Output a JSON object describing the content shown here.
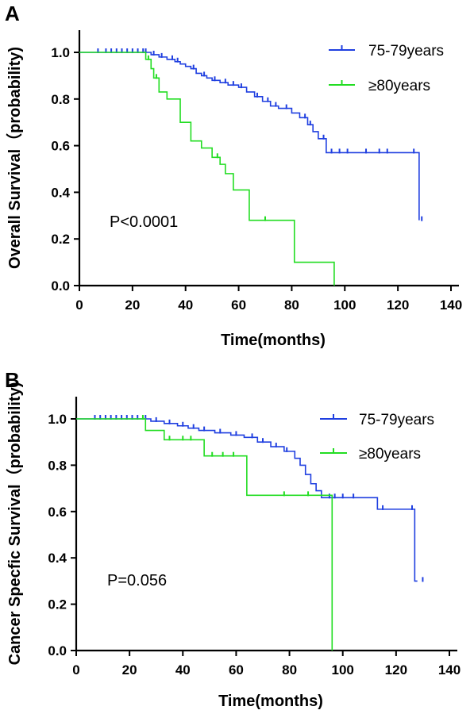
{
  "chart_data": [
    {
      "panel": "A",
      "type": "line",
      "step": true,
      "ylabel": "Overall Survival（probability)",
      "xlabel": "Time(months)",
      "xlim": [
        0,
        140
      ],
      "ylim": [
        0,
        1.0
      ],
      "xticks": [
        0,
        20,
        40,
        60,
        80,
        100,
        120,
        140
      ],
      "yticks": [
        "0.0",
        "0.2",
        "0.4",
        "0.6",
        "0.8",
        "1.0"
      ],
      "legend_position": "top-right",
      "annotation": "P<0.0001",
      "series": [
        {
          "name": "75-79years",
          "color": "#1f3fe0",
          "x": [
            0,
            27,
            30,
            33,
            36,
            38,
            40,
            42,
            44,
            46,
            48,
            50,
            53,
            56,
            60,
            63,
            66,
            69,
            72,
            75,
            80,
            83,
            86,
            88,
            90,
            93,
            127,
            128
          ],
          "y": [
            1.0,
            0.99,
            0.98,
            0.97,
            0.96,
            0.95,
            0.94,
            0.93,
            0.91,
            0.9,
            0.89,
            0.88,
            0.87,
            0.86,
            0.85,
            0.83,
            0.81,
            0.79,
            0.77,
            0.76,
            0.74,
            0.72,
            0.69,
            0.66,
            0.63,
            0.57,
            0.57,
            0.28
          ],
          "censored_x": [
            7,
            10,
            12,
            14,
            16,
            18,
            20,
            22,
            24,
            25,
            28,
            31,
            35,
            37,
            43,
            47,
            51,
            55,
            58,
            61,
            67,
            71,
            74,
            78,
            85,
            87,
            92,
            95,
            98,
            101,
            108,
            113,
            116,
            126,
            129
          ]
        },
        {
          "name": "≥80years",
          "color": "#22dd22",
          "x": [
            0,
            25,
            27,
            28,
            30,
            33,
            38,
            42,
            46,
            50,
            53,
            55,
            58,
            64,
            81,
            96
          ],
          "y": [
            1.0,
            0.97,
            0.93,
            0.89,
            0.83,
            0.8,
            0.7,
            0.62,
            0.59,
            0.55,
            0.52,
            0.48,
            0.41,
            0.28,
            0.1,
            0.0
          ],
          "censored_x": [
            26,
            29,
            52,
            70
          ]
        }
      ]
    },
    {
      "panel": "B",
      "type": "line",
      "step": true,
      "ylabel": "Cancer Specfic Survival（probability)",
      "xlabel": "Time(months)",
      "xlim": [
        0,
        140
      ],
      "ylim": [
        0,
        1.0
      ],
      "xticks": [
        0,
        20,
        40,
        60,
        80,
        100,
        120,
        140
      ],
      "yticks": [
        "0.0",
        "0.2",
        "0.4",
        "0.6",
        "0.8",
        "1.0"
      ],
      "legend_position": "top-right",
      "annotation": "P=0.056",
      "series": [
        {
          "name": "75-79years",
          "color": "#1f3fe0",
          "x": [
            0,
            28,
            33,
            38,
            42,
            46,
            52,
            58,
            63,
            68,
            73,
            78,
            82,
            84,
            86,
            88,
            90,
            92,
            113,
            127,
            128
          ],
          "y": [
            1.0,
            0.99,
            0.98,
            0.97,
            0.96,
            0.95,
            0.94,
            0.93,
            0.92,
            0.9,
            0.88,
            0.86,
            0.83,
            0.8,
            0.76,
            0.72,
            0.69,
            0.66,
            0.61,
            0.3,
            0.3
          ],
          "censored_x": [
            7,
            9,
            11,
            13,
            15,
            17,
            19,
            21,
            23,
            26,
            30,
            35,
            40,
            44,
            48,
            54,
            60,
            66,
            70,
            75,
            79,
            95,
            97,
            100,
            104,
            115,
            126,
            130
          ]
        },
        {
          "name": "≥80years",
          "color": "#22dd22",
          "x": [
            0,
            26,
            33,
            48,
            64,
            96
          ],
          "y": [
            1.0,
            0.95,
            0.91,
            0.84,
            0.67,
            0.0
          ],
          "censored_x": [
            25,
            35,
            40,
            43,
            51,
            55,
            59,
            78,
            87
          ]
        }
      ]
    }
  ]
}
